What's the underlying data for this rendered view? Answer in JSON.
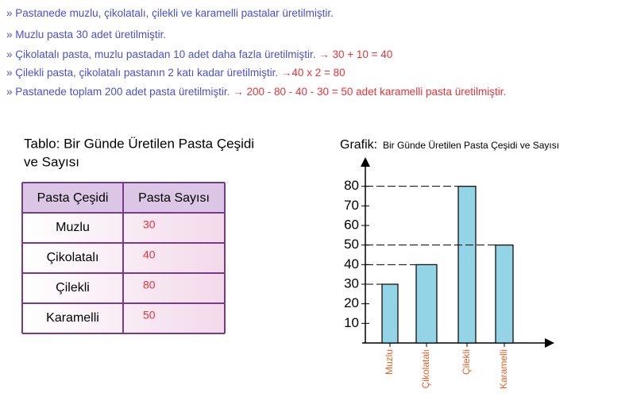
{
  "lines": [
    {
      "text": "» Pastanede muzlu, çikolatalı, çilekli ve karamelli pastalar üretilmiştir."
    },
    {
      "text": "» Muzlu pasta 30 adet üretilmiştir."
    },
    {
      "text": "» Çikolatalı pasta, muzlu pastadan 10 adet daha fazla üretilmiştir.",
      "calc": "→ 30 + 10 = 40"
    },
    {
      "text": "» Çilekli pasta, çikolatalı pastanın 2 katı kadar üretilmiştir.",
      "calc": "→40 x 2 = 80"
    },
    {
      "text": "» Pastanede toplam 200 adet pasta üretilmiştir.",
      "calc": "→ 200 - 80 - 40 - 30 = 50 adet karamelli pasta üretilmiştir."
    }
  ],
  "table": {
    "title": [
      "Tablo: Bir Günde Üretilen Pasta Çeşidi",
      "ve Sayısı"
    ],
    "header": [
      "Pasta Çeşidi",
      "Pasta Sayısı"
    ],
    "rows": [
      [
        "Muzlu",
        30
      ],
      [
        "Çikolatalı",
        40
      ],
      [
        "Çilekli",
        80
      ],
      [
        "Karamelli",
        50
      ]
    ]
  },
  "chart_data": {
    "type": "bar",
    "title_prefix": "Grafik:",
    "title": "Bir Günde Üretilen Pasta Çeşidi  ve Sayısı",
    "categories": [
      "Muzlu",
      "Çikolatalı",
      "Çilekli",
      "Karamelli"
    ],
    "values": [
      30,
      40,
      80,
      50
    ],
    "color": "#93d5e6",
    "ylim": [
      0,
      90
    ],
    "yticks": [
      10,
      20,
      30,
      40,
      50,
      60,
      70,
      80
    ]
  }
}
